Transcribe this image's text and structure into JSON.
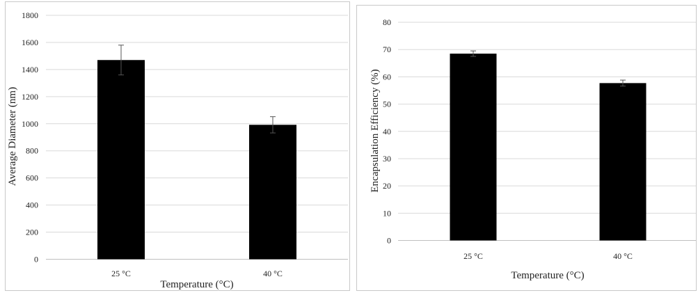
{
  "chart_data": [
    {
      "type": "bar",
      "categories": [
        "25 °C",
        "40 °C"
      ],
      "values": [
        1470,
        992
      ],
      "errors": [
        110,
        60
      ],
      "xlabel": "Temperature (°C)",
      "ylabel": "Average Diameter (nm)",
      "ylim": [
        0,
        1800
      ],
      "yticks": [
        "0",
        "200",
        "400",
        "600",
        "800",
        "1000",
        "1200",
        "1400",
        "1600",
        "1800"
      ],
      "grid": true,
      "bar_color": "#000000"
    },
    {
      "type": "bar",
      "categories": [
        "25 °C",
        "40 °C"
      ],
      "values": [
        68.5,
        57.7
      ],
      "errors": [
        1.0,
        1.1
      ],
      "xlabel": "Temperature (°C)",
      "ylabel": "Encapsulation Efficiency (%)",
      "ylim": [
        0,
        80
      ],
      "yticks": [
        "0",
        "10",
        "20",
        "30",
        "40",
        "50",
        "60",
        "70",
        "80"
      ],
      "grid": true,
      "bar_color": "#000000"
    }
  ]
}
